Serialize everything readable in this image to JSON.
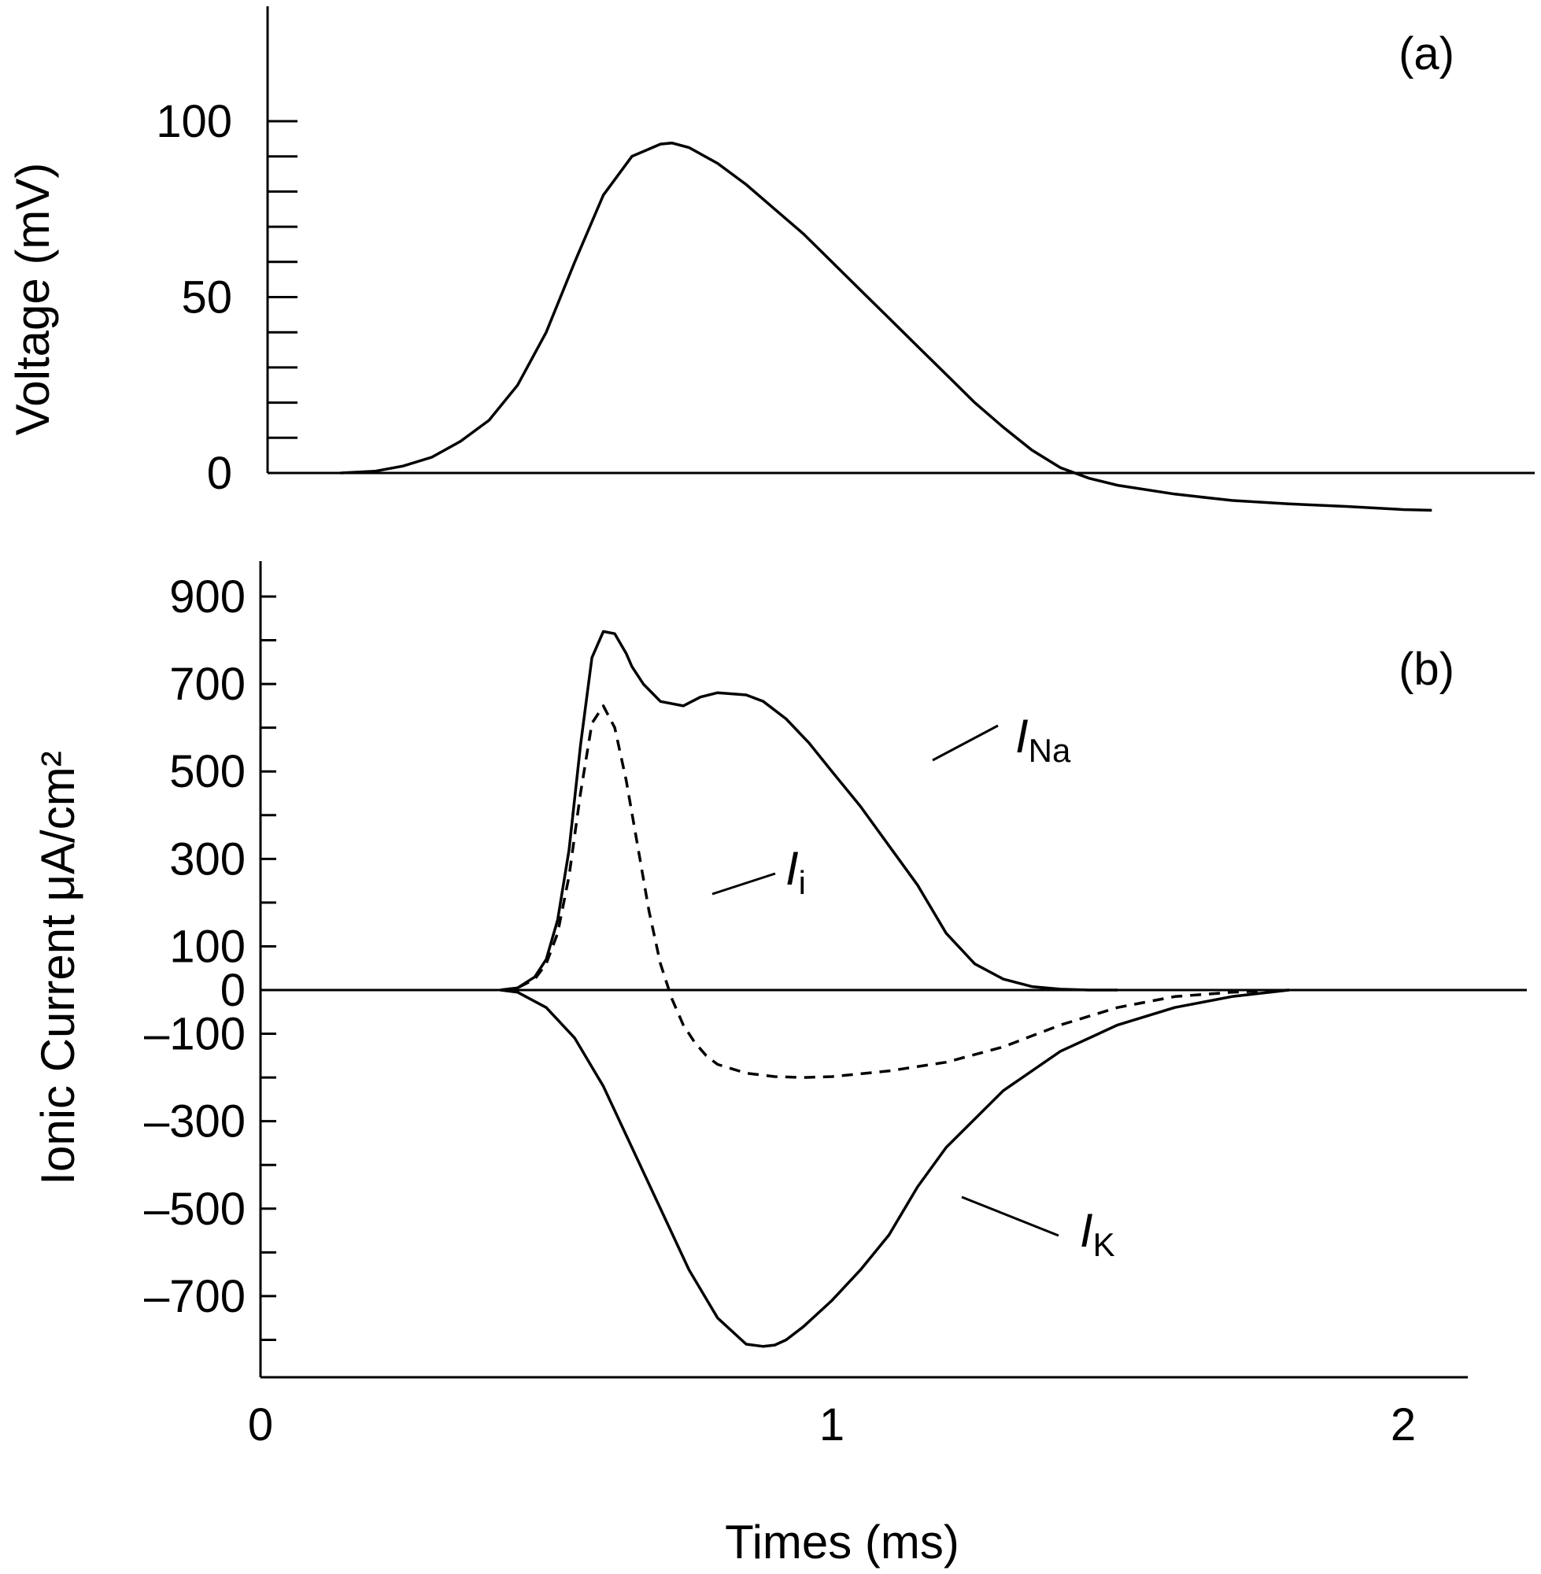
{
  "chart_data": [
    {
      "type": "line",
      "panel_label": "(a)",
      "ylabel": "Voltage (mV)",
      "xlim": [
        0,
        2.05
      ],
      "ylim": [
        -5,
        130
      ],
      "yticks": [
        0,
        10,
        20,
        30,
        40,
        50,
        60,
        70,
        80,
        90,
        100
      ],
      "ytick_labels": [
        {
          "value": 0,
          "label": "0"
        },
        {
          "value": 50,
          "label": "50"
        },
        {
          "value": 100,
          "label": "100"
        }
      ],
      "zero_line": true,
      "series": [
        {
          "style": "solid",
          "x": [
            0.14,
            0.2,
            0.25,
            0.3,
            0.35,
            0.4,
            0.45,
            0.5,
            0.55,
            0.6,
            0.65,
            0.7,
            0.72,
            0.75,
            0.8,
            0.85,
            0.9,
            0.95,
            1.0,
            1.05,
            1.1,
            1.15,
            1.2,
            1.25,
            1.3,
            1.35,
            1.4,
            1.45,
            1.5,
            1.6,
            1.7,
            1.8,
            1.9,
            2.0,
            2.05
          ],
          "y": [
            0,
            0.5,
            2,
            4.5,
            9,
            15,
            25,
            40,
            60,
            79,
            90,
            93.5,
            93.8,
            92.5,
            88,
            82,
            75,
            68,
            60,
            52,
            44,
            36,
            28,
            20,
            13,
            6.5,
            1.5,
            -1.5,
            -3.5,
            -6,
            -7.8,
            -8.8,
            -9.5,
            -10.4,
            -10.6
          ]
        }
      ]
    },
    {
      "type": "line",
      "panel_label": "(b)",
      "ylabel": "Ionic Current μA/cm²",
      "xlabel": "Times (ms)",
      "xlim": [
        0,
        2.07
      ],
      "ylim": [
        -880,
        940
      ],
      "xticks": [
        0,
        1,
        2
      ],
      "xtick_labels": [
        "0",
        "1",
        "2"
      ],
      "yticks": [
        -800,
        -700,
        -600,
        -500,
        -400,
        -300,
        -200,
        -100,
        0,
        100,
        200,
        300,
        400,
        500,
        600,
        700,
        800,
        900
      ],
      "ytick_labels": [
        {
          "value": 900,
          "label": "900"
        },
        {
          "value": 700,
          "label": "700"
        },
        {
          "value": 500,
          "label": "500"
        },
        {
          "value": 300,
          "label": "300"
        },
        {
          "value": 100,
          "label": "100"
        },
        {
          "value": 0,
          "label": "0"
        },
        {
          "value": -100,
          "label": "–100"
        },
        {
          "value": -300,
          "label": "–300"
        },
        {
          "value": -500,
          "label": "–500"
        },
        {
          "value": -700,
          "label": "–700"
        }
      ],
      "zero_line": true,
      "series": [
        {
          "label_main": "I",
          "label_sub": "Na",
          "style": "solid",
          "x": [
            0.42,
            0.45,
            0.48,
            0.5,
            0.52,
            0.54,
            0.56,
            0.58,
            0.6,
            0.62,
            0.64,
            0.65,
            0.67,
            0.7,
            0.74,
            0.77,
            0.8,
            0.85,
            0.88,
            0.92,
            0.96,
            1.0,
            1.05,
            1.1,
            1.15,
            1.2,
            1.25,
            1.3,
            1.35,
            1.4,
            1.45,
            1.5
          ],
          "y": [
            0,
            5,
            30,
            70,
            160,
            320,
            560,
            760,
            820,
            815,
            770,
            740,
            700,
            660,
            650,
            670,
            680,
            675,
            660,
            620,
            565,
            500,
            420,
            330,
            240,
            130,
            60,
            25,
            8,
            2,
            0,
            0
          ]
        },
        {
          "label_main": "I",
          "label_sub": "i",
          "style": "dashed",
          "x": [
            0.42,
            0.45,
            0.48,
            0.5,
            0.52,
            0.54,
            0.56,
            0.58,
            0.6,
            0.62,
            0.64,
            0.66,
            0.68,
            0.7,
            0.72,
            0.74,
            0.76,
            0.78,
            0.8,
            0.85,
            0.9,
            0.95,
            1.0,
            1.1,
            1.2,
            1.3,
            1.4,
            1.5,
            1.6,
            1.7,
            1.8
          ],
          "y": [
            0,
            5,
            25,
            60,
            130,
            260,
            450,
            610,
            650,
            600,
            480,
            330,
            180,
            60,
            -20,
            -80,
            -120,
            -150,
            -170,
            -190,
            -198,
            -200,
            -198,
            -185,
            -165,
            -130,
            -80,
            -40,
            -15,
            -5,
            0
          ]
        },
        {
          "label_main": "I",
          "label_sub": "K",
          "style": "solid",
          "x": [
            0.42,
            0.45,
            0.5,
            0.55,
            0.6,
            0.65,
            0.7,
            0.75,
            0.8,
            0.85,
            0.88,
            0.9,
            0.92,
            0.95,
            1.0,
            1.05,
            1.1,
            1.15,
            1.2,
            1.3,
            1.4,
            1.5,
            1.6,
            1.7,
            1.8
          ],
          "y": [
            0,
            -5,
            -40,
            -110,
            -220,
            -360,
            -500,
            -640,
            -750,
            -810,
            -815,
            -812,
            -800,
            -770,
            -710,
            -640,
            -560,
            -450,
            -360,
            -230,
            -140,
            -80,
            -40,
            -15,
            0
          ]
        }
      ]
    }
  ]
}
